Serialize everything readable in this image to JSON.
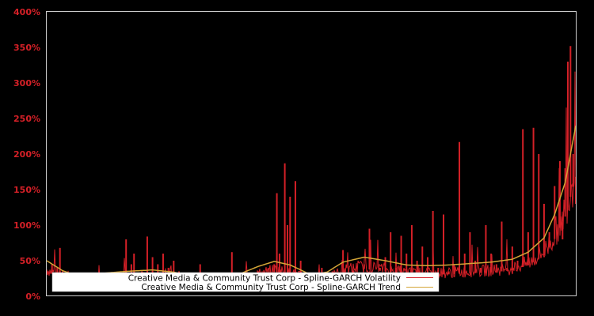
{
  "chart_data": {
    "type": "line",
    "title": "",
    "xlabel": "",
    "ylabel": "",
    "ylim": [
      0,
      400
    ],
    "y_ticks": [
      "0%",
      "50%",
      "100%",
      "150%",
      "200%",
      "250%",
      "300%",
      "350%",
      "400%"
    ],
    "y_tick_values": [
      0,
      50,
      100,
      150,
      200,
      250,
      300,
      350,
      400
    ],
    "grid": false,
    "legend_position": "lower center",
    "colors": {
      "background": "#000000",
      "axis": "#cccccc",
      "tick_label": "#d42027",
      "volatility": "#d42027",
      "trend": "#d4a537"
    },
    "series": [
      {
        "name": "Creative Media & Community Trust Corp - Spline-GARCH Volatility",
        "color": "#d42027",
        "x_fraction": [
          0.0,
          0.01,
          0.02,
          0.025,
          0.03,
          0.04,
          0.05,
          0.07,
          0.09,
          0.11,
          0.13,
          0.15,
          0.16,
          0.165,
          0.17,
          0.18,
          0.19,
          0.2,
          0.21,
          0.22,
          0.23,
          0.24,
          0.25,
          0.27,
          0.29,
          0.31,
          0.33,
          0.35,
          0.37,
          0.4,
          0.42,
          0.43,
          0.435,
          0.44,
          0.45,
          0.455,
          0.46,
          0.47,
          0.48,
          0.5,
          0.52,
          0.54,
          0.56,
          0.58,
          0.6,
          0.61,
          0.63,
          0.64,
          0.65,
          0.66,
          0.67,
          0.68,
          0.69,
          0.7,
          0.71,
          0.72,
          0.73,
          0.74,
          0.75,
          0.76,
          0.77,
          0.78,
          0.79,
          0.8,
          0.81,
          0.82,
          0.83,
          0.84,
          0.85,
          0.86,
          0.87,
          0.88,
          0.89,
          0.9,
          0.91,
          0.92,
          0.93,
          0.94,
          0.95,
          0.96,
          0.97,
          0.975,
          0.98,
          0.985,
          0.99,
          0.995,
          1.0
        ],
        "values": [
          30,
          45,
          40,
          68,
          35,
          20,
          30,
          20,
          25,
          20,
          25,
          80,
          45,
          60,
          30,
          35,
          84,
          55,
          45,
          60,
          40,
          50,
          35,
          30,
          45,
          30,
          25,
          62,
          30,
          35,
          40,
          45,
          145,
          60,
          187,
          100,
          140,
          162,
          50,
          30,
          40,
          35,
          65,
          30,
          45,
          95,
          40,
          55,
          90,
          40,
          85,
          60,
          100,
          50,
          70,
          55,
          120,
          40,
          115,
          35,
          45,
          217,
          60,
          90,
          50,
          40,
          100,
          60,
          45,
          105,
          40,
          70,
          50,
          235,
          90,
          237,
          200,
          130,
          90,
          155,
          190,
          80,
          180,
          330,
          352,
          200,
          130
        ]
      },
      {
        "name": "Creative Media & Community Trust Corp - Spline-GARCH Trend",
        "color": "#d4a537",
        "x_fraction": [
          0.0,
          0.03,
          0.06,
          0.1,
          0.15,
          0.2,
          0.24,
          0.28,
          0.32,
          0.36,
          0.4,
          0.43,
          0.46,
          0.5,
          0.53,
          0.56,
          0.6,
          0.64,
          0.68,
          0.72,
          0.76,
          0.8,
          0.84,
          0.88,
          0.91,
          0.94,
          0.96,
          0.98,
          1.0
        ],
        "values": [
          50,
          36,
          28,
          32,
          35,
          37,
          34,
          26,
          22,
          30,
          42,
          49,
          44,
          30,
          34,
          48,
          55,
          50,
          44,
          43,
          44,
          46,
          48,
          52,
          62,
          82,
          115,
          160,
          240
        ]
      }
    ]
  },
  "legend": {
    "items": [
      {
        "label": "Creative Media & Community Trust Corp - Spline-GARCH Volatility",
        "color": "#d42027"
      },
      {
        "label": "Creative Media & Community Trust Corp - Spline-GARCH Trend",
        "color": "#d4a537"
      }
    ]
  }
}
